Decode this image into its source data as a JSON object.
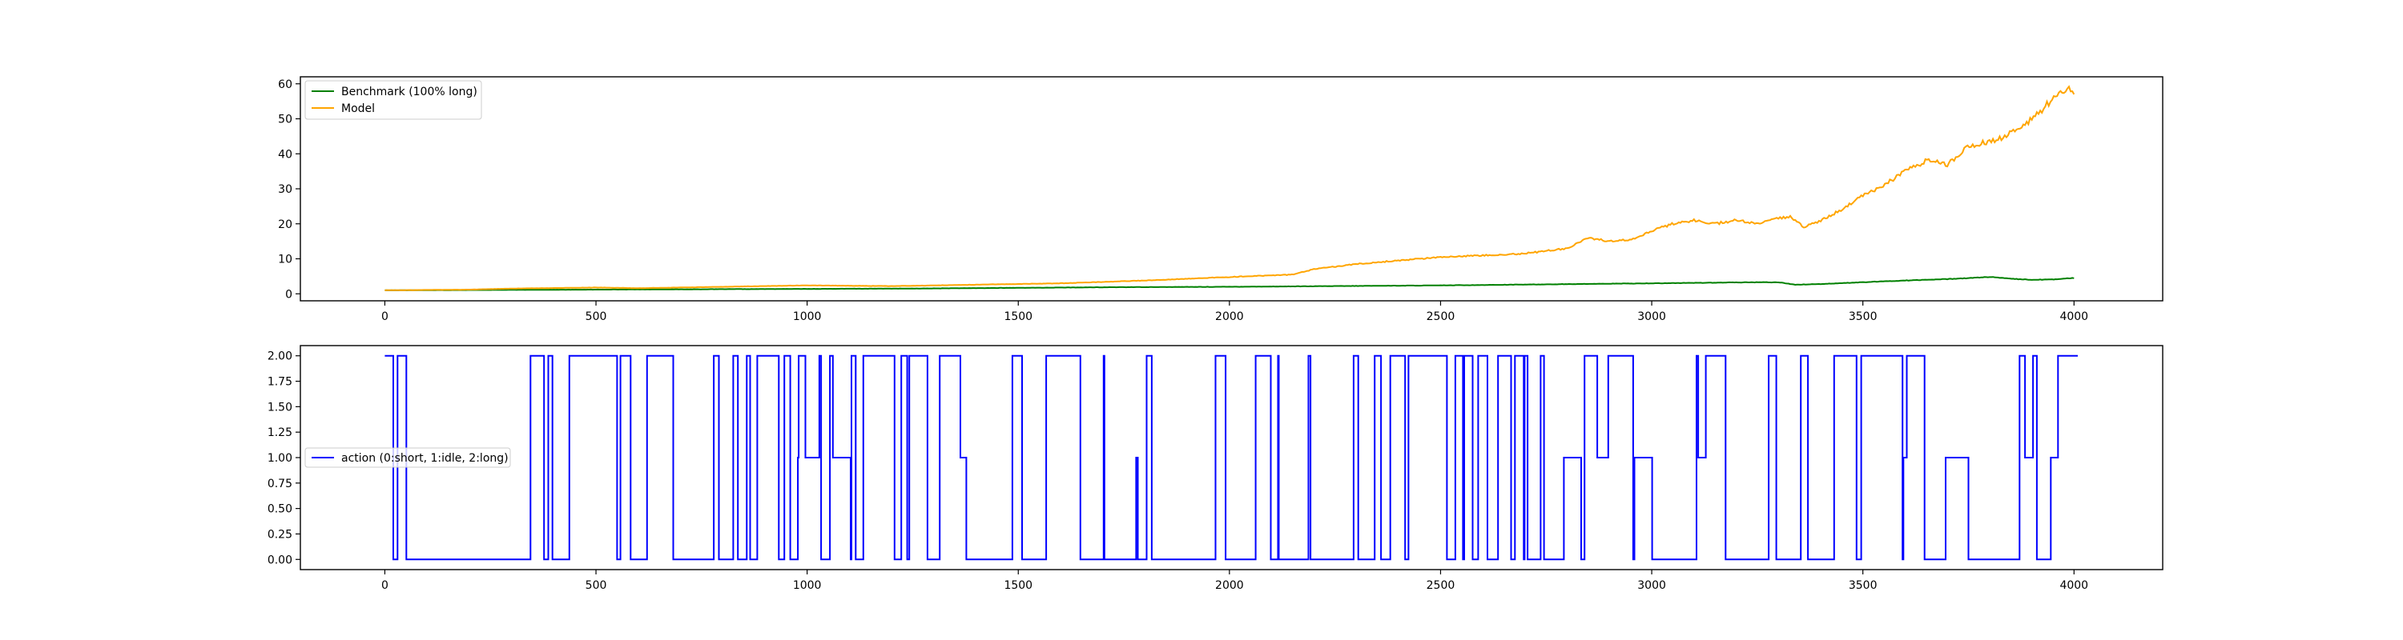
{
  "chart_data": [
    {
      "type": "line",
      "xlim": [
        -200,
        4210
      ],
      "ylim": [
        -2,
        62
      ],
      "xticks": [
        0,
        500,
        1000,
        1500,
        2000,
        2500,
        3000,
        3500,
        4000
      ],
      "yticks": [
        0,
        10,
        20,
        30,
        40,
        50,
        60
      ],
      "legend_position": "upper left",
      "series": [
        {
          "name": "Benchmark (100% long)",
          "color": "#008000",
          "x": [
            0,
            250,
            500,
            750,
            1000,
            1250,
            1500,
            1750,
            2000,
            2250,
            2500,
            2750,
            3000,
            3250,
            3300,
            3340,
            3400,
            3500,
            3600,
            3700,
            3750,
            3800,
            3850,
            3900,
            3950,
            4000
          ],
          "y": [
            1.0,
            1.1,
            1.2,
            1.3,
            1.4,
            1.5,
            1.7,
            1.9,
            2.0,
            2.2,
            2.4,
            2.7,
            3.0,
            3.3,
            3.3,
            2.6,
            2.8,
            3.3,
            3.8,
            4.2,
            4.5,
            4.8,
            4.3,
            4.0,
            4.1,
            4.5
          ]
        },
        {
          "name": "Model",
          "color": "#FFA500",
          "x": [
            0,
            200,
            300,
            500,
            600,
            800,
            1000,
            1200,
            1400,
            1600,
            1800,
            2000,
            2150,
            2200,
            2300,
            2400,
            2500,
            2600,
            2700,
            2800,
            2850,
            2900,
            2950,
            3000,
            3050,
            3100,
            3150,
            3200,
            3250,
            3300,
            3330,
            3360,
            3400,
            3450,
            3500,
            3550,
            3600,
            3650,
            3700,
            3750,
            3780,
            3820,
            3850,
            3880,
            3920,
            3960,
            3990,
            4000
          ],
          "y": [
            1.0,
            1.2,
            1.5,
            1.8,
            1.6,
            2.0,
            2.4,
            2.2,
            2.6,
            3.0,
            3.8,
            4.8,
            5.5,
            7.0,
            8.5,
            9.5,
            10.5,
            11.0,
            11.5,
            13.0,
            16.0,
            15.0,
            15.5,
            18.0,
            20.0,
            21.0,
            20.0,
            21.0,
            20.0,
            21.5,
            22.0,
            19.0,
            21.0,
            24.0,
            28.0,
            31.0,
            35.0,
            38.0,
            37.0,
            42.0,
            43.0,
            44.0,
            46.0,
            48.0,
            52.0,
            57.0,
            59.0,
            58.0
          ]
        }
      ]
    },
    {
      "type": "line",
      "xlim": [
        -200,
        4210
      ],
      "ylim": [
        -0.1,
        2.1
      ],
      "xticks": [
        0,
        500,
        1000,
        1500,
        2000,
        2500,
        3000,
        3500,
        4000
      ],
      "yticks": [
        "0.00",
        "0.25",
        "0.50",
        "0.75",
        "1.00",
        "1.25",
        "1.50",
        "1.75",
        "2.00"
      ],
      "legend_position": "center left",
      "series": [
        {
          "name": "action (0:short, 1:idle, 2:long)",
          "color": "#0000FF",
          "step": true,
          "n_points": 4010,
          "values": [
            0,
            1,
            2
          ]
        }
      ]
    }
  ]
}
